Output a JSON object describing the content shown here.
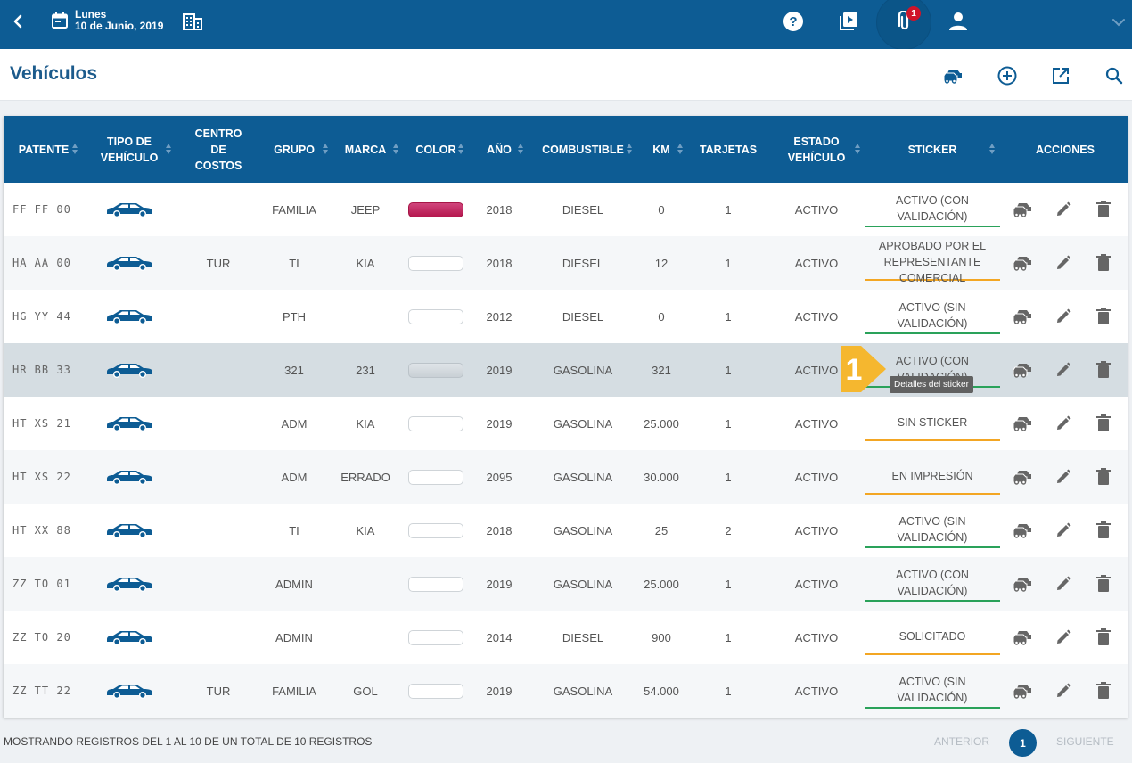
{
  "header": {
    "day": "Lunes",
    "date": "10 de Junio, 2019",
    "notification_count": "1"
  },
  "page": {
    "title": "Vehículos"
  },
  "table": {
    "columns": [
      {
        "key": "patente",
        "label": "PATENTE"
      },
      {
        "key": "tipo",
        "label": "TIPO DE VEHÍCULO"
      },
      {
        "key": "centro",
        "label": "CENTRO DE COSTOS"
      },
      {
        "key": "grupo",
        "label": "GRUPO"
      },
      {
        "key": "marca",
        "label": "MARCA"
      },
      {
        "key": "color",
        "label": "COLOR"
      },
      {
        "key": "anio",
        "label": "AÑO"
      },
      {
        "key": "combustible",
        "label": "COMBUSTIBLE"
      },
      {
        "key": "km",
        "label": "KM"
      },
      {
        "key": "tarjetas",
        "label": "TARJETAS"
      },
      {
        "key": "estado",
        "label": "ESTADO VEHÍCULO"
      },
      {
        "key": "sticker",
        "label": "STICKER"
      },
      {
        "key": "acciones",
        "label": "ACCIONES"
      }
    ],
    "rows": [
      {
        "patente": "FF FF 00",
        "centro": "",
        "grupo": "FAMILIA",
        "marca": "JEEP",
        "color": "magenta",
        "anio": "2018",
        "combustible": "DIESEL",
        "km": "0",
        "tarjetas": "1",
        "estado": "ACTIVO",
        "sticker": "ACTIVO (CON VALIDACIÓN)",
        "sticker_status": "green"
      },
      {
        "patente": "HA AA 00",
        "centro": "TUR",
        "grupo": "TI",
        "marca": "KIA",
        "color": "white",
        "anio": "2018",
        "combustible": "DIESEL",
        "km": "12",
        "tarjetas": "1",
        "estado": "ACTIVO",
        "sticker": "APROBADO POR EL REPRESENTANTE COMERCIAL",
        "sticker_status": "orange"
      },
      {
        "patente": "HG YY 44",
        "centro": "",
        "grupo": "PTH",
        "marca": "",
        "color": "white",
        "anio": "2012",
        "combustible": "DIESEL",
        "km": "0",
        "tarjetas": "1",
        "estado": "ACTIVO",
        "sticker": "ACTIVO (SIN VALIDACIÓN)",
        "sticker_status": "green"
      },
      {
        "patente": "HR BB 33",
        "centro": "",
        "grupo": "321",
        "marca": "231",
        "color": "grey",
        "anio": "2019",
        "combustible": "GASOLINA",
        "km": "321",
        "tarjetas": "1",
        "estado": "ACTIVO",
        "sticker": "ACTIVO (CON VALIDACIÓN)",
        "sticker_status": "green"
      },
      {
        "patente": "HT XS 21",
        "centro": "",
        "grupo": "ADM",
        "marca": "KIA",
        "color": "white",
        "anio": "2019",
        "combustible": "GASOLINA",
        "km": "25.000",
        "tarjetas": "1",
        "estado": "ACTIVO",
        "sticker": "SIN STICKER",
        "sticker_status": "orange"
      },
      {
        "patente": "HT XS 22",
        "centro": "",
        "grupo": "ADM",
        "marca": "ERRADO",
        "color": "white",
        "anio": "2095",
        "combustible": "GASOLINA",
        "km": "30.000",
        "tarjetas": "1",
        "estado": "ACTIVO",
        "sticker": "EN IMPRESIÓN",
        "sticker_status": "orange"
      },
      {
        "patente": "HT XX 88",
        "centro": "",
        "grupo": "TI",
        "marca": "KIA",
        "color": "white",
        "anio": "2018",
        "combustible": "GASOLINA",
        "km": "25",
        "tarjetas": "2",
        "estado": "ACTIVO",
        "sticker": "ACTIVO (SIN VALIDACIÓN)",
        "sticker_status": "green"
      },
      {
        "patente": "ZZ TO 01",
        "centro": "",
        "grupo": "ADMIN",
        "marca": "",
        "color": "white",
        "anio": "2019",
        "combustible": "GASOLINA",
        "km": "25.000",
        "tarjetas": "1",
        "estado": "ACTIVO",
        "sticker": "ACTIVO (CON VALIDACIÓN)",
        "sticker_status": "green"
      },
      {
        "patente": "ZZ TO 20",
        "centro": "",
        "grupo": "ADMIN",
        "marca": "",
        "color": "white",
        "anio": "2014",
        "combustible": "DIESEL",
        "km": "900",
        "tarjetas": "1",
        "estado": "ACTIVO",
        "sticker": "SOLICITADO",
        "sticker_status": "orange"
      },
      {
        "patente": "ZZ TT 22",
        "centro": "TUR",
        "grupo": "FAMILIA",
        "marca": "GOL",
        "color": "white",
        "anio": "2019",
        "combustible": "GASOLINA",
        "km": "54.000",
        "tarjetas": "1",
        "estado": "ACTIVO",
        "sticker": "ACTIVO (SIN VALIDACIÓN)",
        "sticker_status": "green"
      }
    ]
  },
  "pointer": {
    "step": "1",
    "tooltip": "Detalles del sticker"
  },
  "footer": {
    "summary": "MOSTRANDO REGISTROS DEL 1 AL 10 DE UN TOTAL DE 10 REGISTROS",
    "prev": "ANTERIOR",
    "page": "1",
    "next": "SIGUIENTE"
  },
  "colors": {
    "primary": "#0d5c94",
    "status_green": "#2aa25a",
    "status_orange": "#f3a623",
    "pointer": "#f5b72f"
  },
  "icons": [
    "back-icon",
    "calendar-icon",
    "building-icon",
    "help-icon",
    "video-icon",
    "attachment-icon",
    "user-icon",
    "chevron-down-icon",
    "cars-icon",
    "add-circle-icon",
    "open-external-icon",
    "search-icon",
    "car-icon",
    "edit-icon",
    "delete-icon"
  ]
}
